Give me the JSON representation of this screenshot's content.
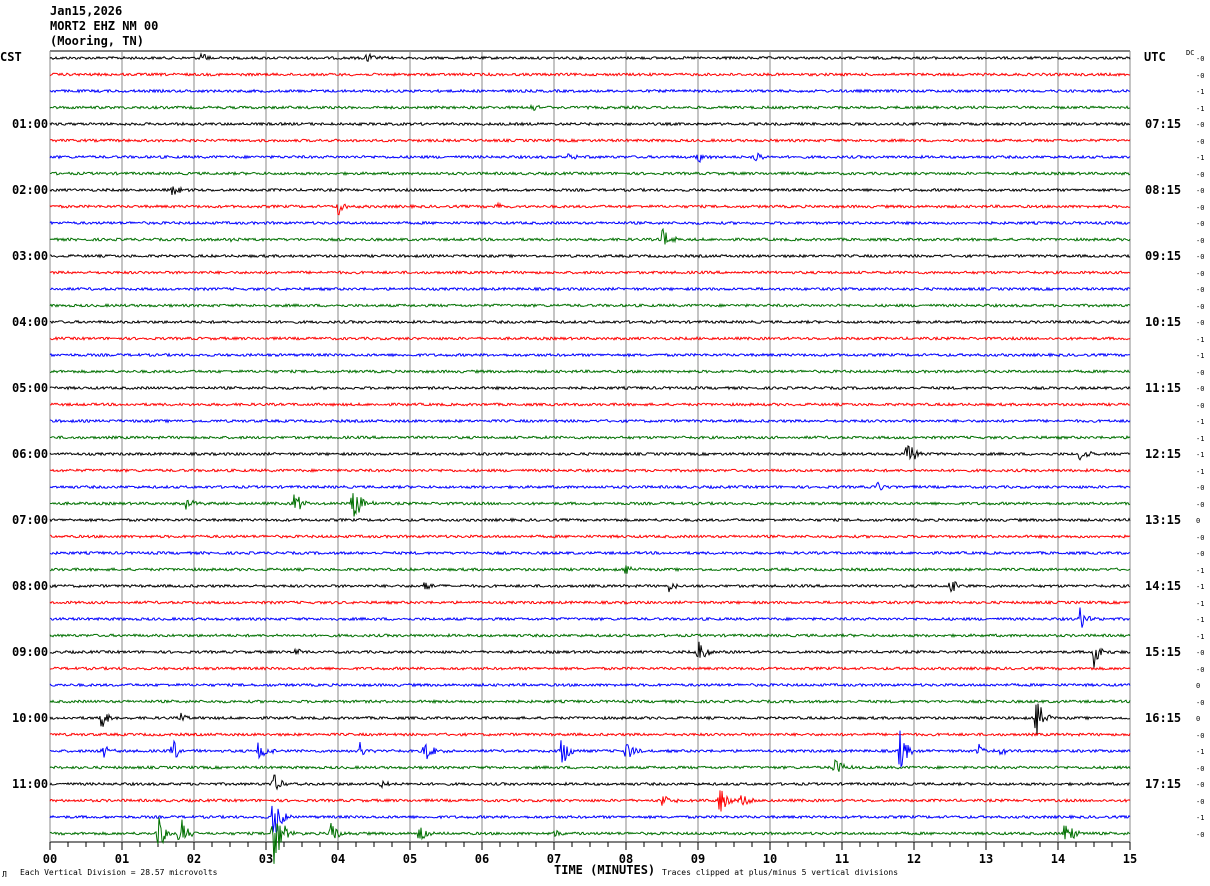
{
  "header": {
    "date": "Jan15,2026",
    "station": "MORT2 EHZ NM 00",
    "location": "(Mooring, TN)"
  },
  "left_zone": "CST",
  "right_zone": "UTC",
  "dc_label": "DC",
  "footer": {
    "scale": "Each Vertical Division =   28.57 microvolts",
    "xlabel": "TIME (MINUTES)",
    "clip_note": "Traces clipped at plus/minus 5 vertical divisions",
    "corner_mark": "Л"
  },
  "chart_data": {
    "type": "line",
    "title": "MORT2 EHZ NM 00 (Mooring, TN) Jan15,2026",
    "xlabel": "TIME (MINUTES)",
    "xlim": [
      0,
      15
    ],
    "x_ticks": [
      "00",
      "01",
      "02",
      "03",
      "04",
      "05",
      "06",
      "07",
      "08",
      "09",
      "10",
      "11",
      "12",
      "13",
      "14",
      "15"
    ],
    "rows": 48,
    "trace_colors": [
      "#000000",
      "#ff0000",
      "#0000ff",
      "#007000"
    ],
    "left_hour_labels": [
      "01:00",
      "02:00",
      "03:00",
      "04:00",
      "05:00",
      "06:00",
      "07:00",
      "08:00",
      "09:00",
      "10:00",
      "11:00"
    ],
    "right_hour_labels": [
      "07:15",
      "08:15",
      "09:15",
      "10:15",
      "11:15",
      "12:15",
      "13:15",
      "14:15",
      "15:15",
      "16:15",
      "17:15"
    ],
    "dc_offsets": [
      "-0",
      "-0",
      "-1",
      "-1",
      "-0",
      "-0",
      "-1",
      "-0",
      "-0",
      "-0",
      "-0",
      "-0",
      "-0",
      "-0",
      "-0",
      "-0",
      "-0",
      "-1",
      "-1",
      "-0",
      "-0",
      "-0",
      "-1",
      "-1",
      "-1",
      "-1",
      "-0",
      "-0",
      "0",
      "-0",
      "-0",
      "-1",
      "-1",
      "-1",
      "-1",
      "-1",
      "-0",
      "-0",
      "0",
      "-0",
      "0",
      "-0",
      "-1",
      "-0",
      "-0",
      "-0",
      "-1",
      "-0"
    ],
    "events": [
      {
        "row": 0,
        "minute": 2.1,
        "amp": 0.6
      },
      {
        "row": 0,
        "minute": 4.4,
        "amp": 0.6
      },
      {
        "row": 3,
        "minute": 6.7,
        "amp": 0.7
      },
      {
        "row": 6,
        "minute": 7.2,
        "amp": 0.5
      },
      {
        "row": 6,
        "minute": 9.0,
        "amp": 0.6
      },
      {
        "row": 6,
        "minute": 9.8,
        "amp": 0.7
      },
      {
        "row": 8,
        "minute": 1.7,
        "amp": 0.7
      },
      {
        "row": 9,
        "minute": 4.0,
        "amp": 1.0
      },
      {
        "row": 9,
        "minute": 6.2,
        "amp": 0.6
      },
      {
        "row": 11,
        "minute": 8.5,
        "amp": 1.5
      },
      {
        "row": 11,
        "minute": 2.5,
        "amp": 0.5
      },
      {
        "row": 24,
        "minute": 11.9,
        "amp": 1.6
      },
      {
        "row": 24,
        "minute": 14.3,
        "amp": 1.0
      },
      {
        "row": 26,
        "minute": 11.5,
        "amp": 0.6
      },
      {
        "row": 27,
        "minute": 4.2,
        "amp": 2.6
      },
      {
        "row": 27,
        "minute": 3.4,
        "amp": 1.4
      },
      {
        "row": 27,
        "minute": 1.9,
        "amp": 0.8
      },
      {
        "row": 31,
        "minute": 8.0,
        "amp": 0.8
      },
      {
        "row": 32,
        "minute": 12.5,
        "amp": 0.9
      },
      {
        "row": 32,
        "minute": 5.2,
        "amp": 0.7
      },
      {
        "row": 32,
        "minute": 8.6,
        "amp": 0.6
      },
      {
        "row": 34,
        "minute": 14.3,
        "amp": 1.3
      },
      {
        "row": 36,
        "minute": 9.0,
        "amp": 1.6
      },
      {
        "row": 36,
        "minute": 14.5,
        "amp": 1.6
      },
      {
        "row": 36,
        "minute": 3.4,
        "amp": 0.6
      },
      {
        "row": 40,
        "minute": 13.7,
        "amp": 2.6
      },
      {
        "row": 40,
        "minute": 0.7,
        "amp": 1.4
      },
      {
        "row": 40,
        "minute": 1.8,
        "amp": 0.5
      },
      {
        "row": 42,
        "minute": 0.7,
        "amp": 1.2
      },
      {
        "row": 42,
        "minute": 1.7,
        "amp": 1.3
      },
      {
        "row": 42,
        "minute": 2.9,
        "amp": 1.4
      },
      {
        "row": 42,
        "minute": 4.3,
        "amp": 0.9
      },
      {
        "row": 42,
        "minute": 5.2,
        "amp": 1.6
      },
      {
        "row": 42,
        "minute": 7.1,
        "amp": 2.0
      },
      {
        "row": 42,
        "minute": 8.0,
        "amp": 1.2
      },
      {
        "row": 42,
        "minute": 11.8,
        "amp": 2.2
      },
      {
        "row": 42,
        "minute": 12.9,
        "amp": 0.8
      },
      {
        "row": 42,
        "minute": 13.2,
        "amp": 0.6
      },
      {
        "row": 43,
        "minute": 10.9,
        "amp": 1.2
      },
      {
        "row": 44,
        "minute": 4.6,
        "amp": 0.4
      },
      {
        "row": 44,
        "minute": 3.1,
        "amp": 1.2
      },
      {
        "row": 45,
        "minute": 8.5,
        "amp": 0.9
      },
      {
        "row": 45,
        "minute": 9.3,
        "amp": 1.6
      },
      {
        "row": 45,
        "minute": 9.6,
        "amp": 1.1
      },
      {
        "row": 46,
        "minute": 3.1,
        "amp": 3.0
      },
      {
        "row": 47,
        "minute": 1.5,
        "amp": 2.0
      },
      {
        "row": 47,
        "minute": 1.8,
        "amp": 2.0
      },
      {
        "row": 47,
        "minute": 3.1,
        "amp": 5.0
      },
      {
        "row": 47,
        "minute": 3.9,
        "amp": 1.5
      },
      {
        "row": 47,
        "minute": 5.1,
        "amp": 1.6
      },
      {
        "row": 47,
        "minute": 7.0,
        "amp": 0.4
      },
      {
        "row": 47,
        "minute": 14.1,
        "amp": 2.0
      }
    ]
  }
}
